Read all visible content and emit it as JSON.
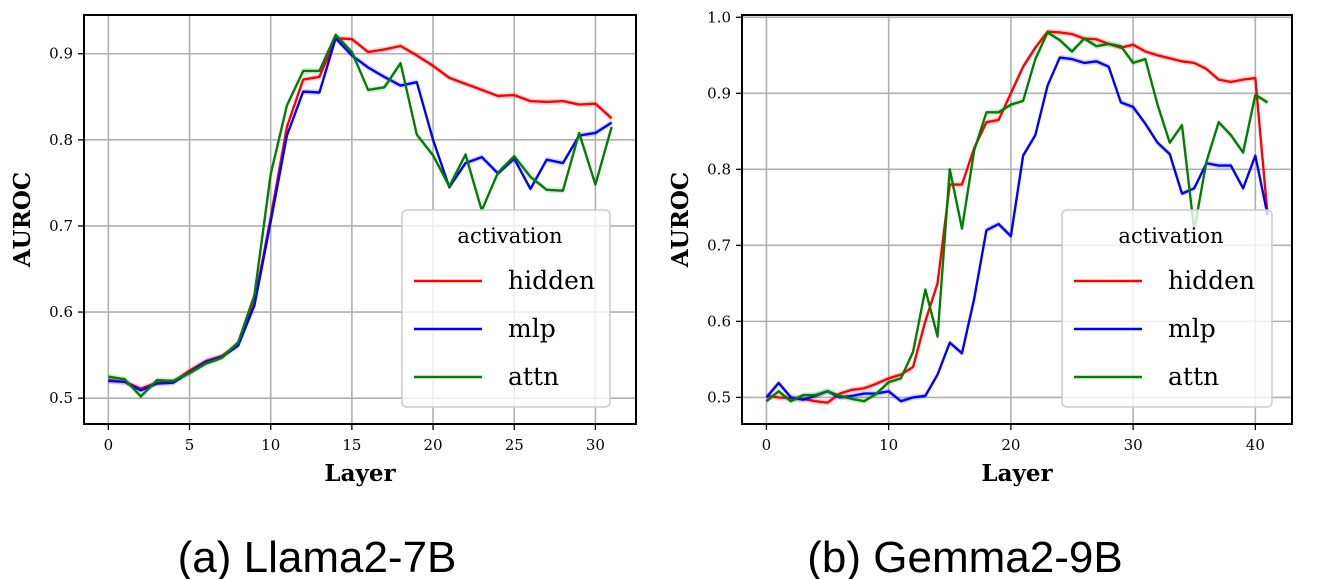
{
  "chart_data": [
    {
      "type": "line",
      "caption": "(a) Llama2-7B",
      "xlabel": "Layer",
      "ylabel": "AUROC",
      "xlim": [
        -1.5,
        32.5
      ],
      "ylim": [
        0.47,
        0.945
      ],
      "xticks": [
        0,
        5,
        10,
        15,
        20,
        25,
        30
      ],
      "yticks": [
        0.5,
        0.6,
        0.7,
        0.8,
        0.9
      ],
      "grid": true,
      "legend": {
        "title": "activation",
        "placement": "lower-right"
      },
      "x": [
        0,
        1,
        2,
        3,
        4,
        5,
        6,
        7,
        8,
        9,
        10,
        11,
        12,
        13,
        14,
        15,
        16,
        17,
        18,
        19,
        20,
        21,
        22,
        23,
        24,
        25,
        26,
        27,
        28,
        29,
        30,
        31
      ],
      "series": [
        {
          "name": "hidden",
          "color": "#ff0000",
          "values": [
            0.521,
            0.519,
            0.511,
            0.518,
            0.519,
            0.532,
            0.543,
            0.549,
            0.563,
            0.611,
            0.71,
            0.815,
            0.87,
            0.873,
            0.918,
            0.917,
            0.902,
            0.905,
            0.909,
            0.898,
            0.886,
            0.872,
            0.865,
            0.858,
            0.851,
            0.852,
            0.845,
            0.844,
            0.845,
            0.841,
            0.842,
            0.825
          ]
        },
        {
          "name": "mlp",
          "color": "#0000ff",
          "values": [
            0.52,
            0.519,
            0.509,
            0.517,
            0.518,
            0.53,
            0.542,
            0.548,
            0.561,
            0.608,
            0.705,
            0.805,
            0.856,
            0.855,
            0.918,
            0.898,
            0.884,
            0.873,
            0.863,
            0.867,
            0.8,
            0.745,
            0.773,
            0.78,
            0.761,
            0.778,
            0.743,
            0.777,
            0.773,
            0.805,
            0.808,
            0.82
          ]
        },
        {
          "name": "attn",
          "color": "#007f00",
          "values": [
            0.525,
            0.522,
            0.502,
            0.521,
            0.52,
            0.529,
            0.54,
            0.547,
            0.565,
            0.62,
            0.76,
            0.84,
            0.88,
            0.88,
            0.922,
            0.902,
            0.858,
            0.861,
            0.889,
            0.806,
            0.782,
            0.746,
            0.783,
            0.718,
            0.762,
            0.781,
            0.757,
            0.742,
            0.741,
            0.808,
            0.748,
            0.815
          ]
        }
      ]
    },
    {
      "type": "line",
      "caption": "(b) Gemma2-9B",
      "xlabel": "Layer",
      "ylabel": "AUROC",
      "xlim": [
        -2,
        43
      ],
      "ylim": [
        0.465,
        1.003
      ],
      "xticks": [
        0,
        10,
        20,
        30,
        40
      ],
      "yticks": [
        0.5,
        0.6,
        0.7,
        0.8,
        0.9,
        1.0
      ],
      "ytick_labels": [
        "0.5",
        "0.6",
        "0.7",
        "0.8",
        "0.9",
        "1.0"
      ],
      "grid": true,
      "legend": {
        "title": "activation",
        "placement": "lower-right"
      },
      "x": [
        0,
        1,
        2,
        3,
        4,
        5,
        6,
        7,
        8,
        9,
        10,
        11,
        12,
        13,
        14,
        15,
        16,
        17,
        18,
        19,
        20,
        21,
        22,
        23,
        24,
        25,
        26,
        27,
        28,
        29,
        30,
        31,
        32,
        33,
        34,
        35,
        36,
        37,
        38,
        39,
        40,
        41
      ],
      "series": [
        {
          "name": "hidden",
          "color": "#ff0000",
          "values": [
            0.502,
            0.5,
            0.499,
            0.498,
            0.495,
            0.493,
            0.505,
            0.51,
            0.512,
            0.518,
            0.525,
            0.53,
            0.54,
            0.6,
            0.65,
            0.78,
            0.78,
            0.828,
            0.862,
            0.865,
            0.9,
            0.935,
            0.96,
            0.981,
            0.98,
            0.978,
            0.972,
            0.971,
            0.965,
            0.96,
            0.964,
            0.955,
            0.95,
            0.946,
            0.942,
            0.94,
            0.932,
            0.918,
            0.915,
            0.918,
            0.92,
            0.74
          ]
        },
        {
          "name": "mlp",
          "color": "#0000ff",
          "values": [
            0.5,
            0.519,
            0.5,
            0.497,
            0.502,
            0.508,
            0.5,
            0.502,
            0.505,
            0.505,
            0.508,
            0.495,
            0.5,
            0.502,
            0.53,
            0.572,
            0.558,
            0.63,
            0.72,
            0.728,
            0.712,
            0.818,
            0.845,
            0.91,
            0.947,
            0.945,
            0.94,
            0.942,
            0.935,
            0.888,
            0.882,
            0.86,
            0.835,
            0.82,
            0.768,
            0.775,
            0.808,
            0.805,
            0.805,
            0.775,
            0.818,
            0.74
          ]
        },
        {
          "name": "attn",
          "color": "#007f00",
          "values": [
            0.495,
            0.508,
            0.495,
            0.503,
            0.503,
            0.508,
            0.502,
            0.498,
            0.495,
            0.505,
            0.52,
            0.525,
            0.56,
            0.642,
            0.58,
            0.8,
            0.722,
            0.825,
            0.875,
            0.875,
            0.885,
            0.89,
            0.945,
            0.98,
            0.97,
            0.955,
            0.972,
            0.962,
            0.965,
            0.962,
            0.94,
            0.945,
            0.885,
            0.835,
            0.858,
            0.72,
            0.81,
            0.862,
            0.845,
            0.822,
            0.898,
            0.888
          ]
        }
      ]
    }
  ]
}
